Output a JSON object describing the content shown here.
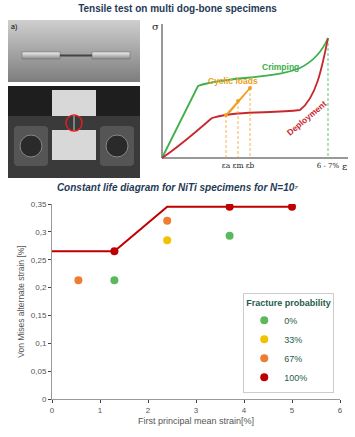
{
  "header": {
    "title": "Tensile test on multi dog-bone specimens",
    "photo_label": "a)"
  },
  "schematic": {
    "y_axis": "σ",
    "x_axis": "ε",
    "curves": [
      {
        "label": "Crimping",
        "color": "#3cae4a"
      },
      {
        "label": "Cyclic loads",
        "color": "#f0a020"
      },
      {
        "label": "Deployment",
        "color": "#c8282d"
      }
    ],
    "x_ticks": [
      "εa",
      "εm",
      "εb",
      "6 - 7%"
    ]
  },
  "chart_data": {
    "type": "scatter",
    "title": "Constant life diagram for NiTi specimens for N=10⁷",
    "x_label": "First principal mean strain[%]",
    "y_label": "Von Mises alternate strain [%]",
    "xlim": [
      0,
      6
    ],
    "xticks": [
      0,
      1,
      2,
      3,
      4,
      5,
      6
    ],
    "ylim": [
      0,
      0.35
    ],
    "yticks": [
      0,
      {
        "value": 0.05,
        "label": "0,05"
      },
      {
        "value": 0.1,
        "label": "0,1"
      },
      {
        "value": 0.15,
        "label": "0,15"
      },
      {
        "value": 0.2,
        "label": "0,2"
      },
      {
        "value": 0.25,
        "label": "0,25"
      },
      {
        "value": 0.3,
        "label": "0,3"
      },
      {
        "value": 0.35,
        "label": "0,35"
      }
    ],
    "grid": false,
    "legend": "lower right",
    "legend_title": "Fracture probability",
    "series": [
      {
        "type": "line",
        "color": "#c00000",
        "x": [
          0,
          1.3,
          2.4,
          5
        ],
        "values": [
          0.265,
          0.265,
          0.345,
          0.345
        ]
      },
      {
        "type": "scatter",
        "name": "0%",
        "color": "#5cb85c",
        "x": [
          1.3,
          3.7
        ],
        "values": [
          0.213,
          0.293
        ]
      },
      {
        "type": "scatter",
        "name": "33%",
        "color": "#f2c200",
        "x": [
          2.4
        ],
        "values": [
          0.285
        ]
      },
      {
        "type": "scatter",
        "name": "67%",
        "color": "#ed7d31",
        "x": [
          0.55,
          2.4
        ],
        "values": [
          0.213,
          0.32
        ]
      },
      {
        "type": "scatter",
        "name": "100%",
        "color": "#c00000",
        "x": [
          1.3,
          3.7,
          5
        ],
        "values": [
          0.265,
          0.345,
          0.345
        ]
      }
    ]
  }
}
